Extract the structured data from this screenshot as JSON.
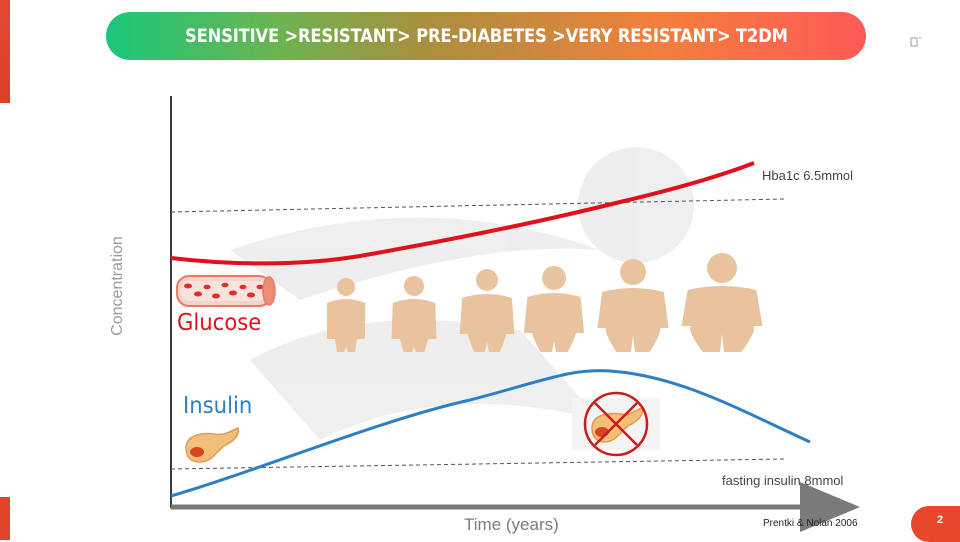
{
  "banner": {
    "title": "SENSITIVE >RESISTANT> PRE-DIABETES >VERY RESISTANT> T2DM"
  },
  "axes": {
    "ylabel": "Concentration",
    "xlabel": "Time (years)"
  },
  "labels": {
    "glucose": "Glucose",
    "insulin": "Insulin",
    "hba1c_threshold": "Hba1c 6.5mmol",
    "fasting_insulin_threshold": "fasting insulin 8mmol"
  },
  "citation": "Prentki  & Nolan 2006",
  "page_number": "2",
  "colors": {
    "glucose": "#e0111d",
    "insulin": "#2d7fc4",
    "figure": "#e8c39e",
    "accent": "#e8472b"
  },
  "icons": [
    "blood-vessel-icon",
    "pancreas-icon",
    "no-pancreas-icon",
    "person-figure-icon"
  ],
  "figures": {
    "count": 6,
    "body_widths_relative": [
      1.0,
      1.1,
      1.3,
      1.35,
      1.6,
      1.8
    ]
  }
}
